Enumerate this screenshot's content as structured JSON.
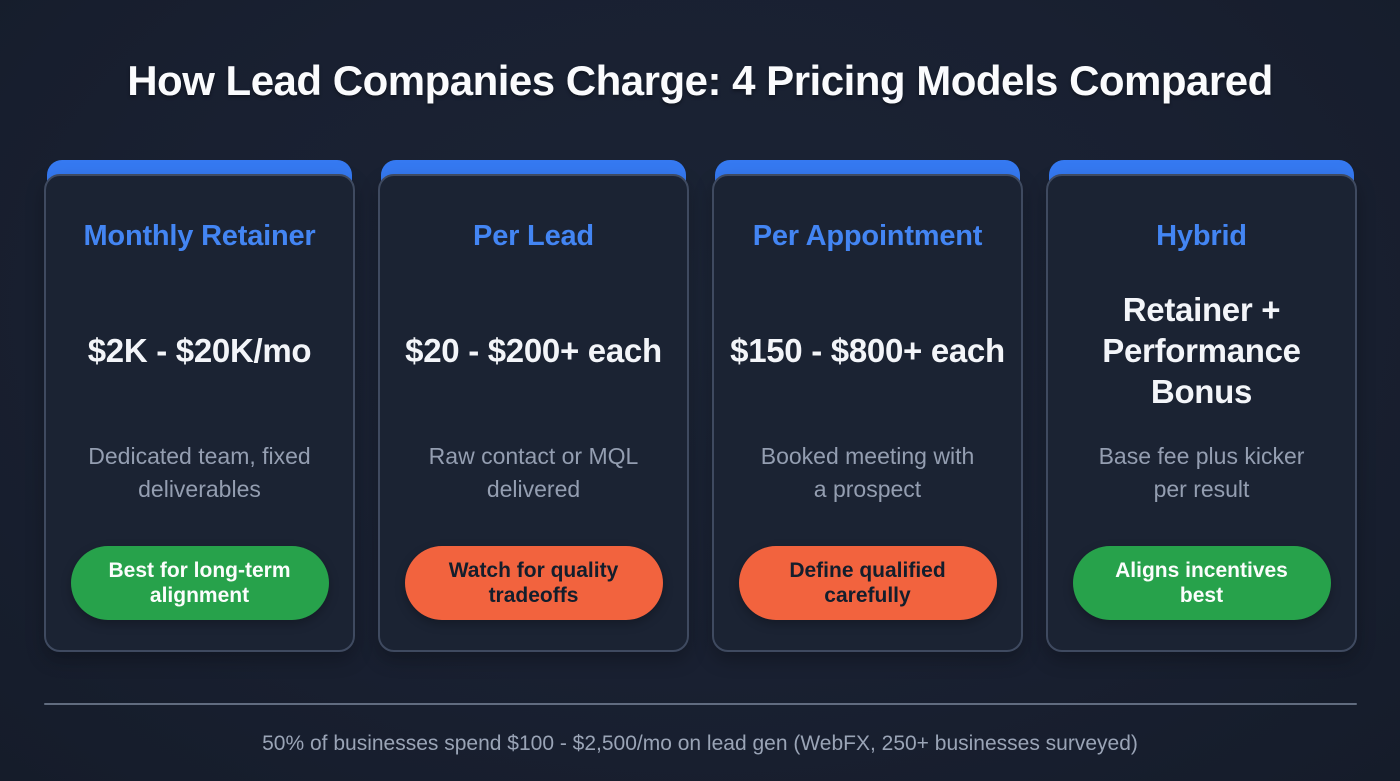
{
  "title": "How Lead Companies Charge: 4 Pricing Models Compared",
  "colors": {
    "background": "#192031",
    "card_background": "#1B2333",
    "card_border": "#3F4A60",
    "accent_blue_cap": "#3579F1",
    "accent_blue_heading": "#4385F3",
    "positive_green": "#27A24B",
    "warning_orange": "#F2633E",
    "price_text": "#F3F5F9",
    "muted_text": "#94A0B1",
    "footer_text": "#9AA4B6"
  },
  "cards": [
    {
      "name": "Monthly Retainer",
      "price": "$2K - $20K/mo",
      "description": "Dedicated team, fixed deliverables",
      "badge": {
        "label": "Best for long-term alignment",
        "tone": "green"
      }
    },
    {
      "name": "Per Lead",
      "price": "$20 - $200+ each",
      "description": "Raw contact or MQL delivered",
      "badge": {
        "label": "Watch for quality tradeoffs",
        "tone": "orange"
      }
    },
    {
      "name": "Per Appointment",
      "price": "$150 - $800+ each",
      "description": "Booked meeting with a prospect",
      "badge": {
        "label": "Define qualified carefully",
        "tone": "orange"
      }
    },
    {
      "name": "Hybrid",
      "price": "Retainer + Performance Bonus",
      "description": "Base fee plus kicker per result",
      "badge": {
        "label": "Aligns incentives best",
        "tone": "green"
      }
    }
  ],
  "footer": {
    "note": "50% of businesses spend $100 - $2,500/mo on lead gen (WebFX, 250+ businesses surveyed)"
  }
}
